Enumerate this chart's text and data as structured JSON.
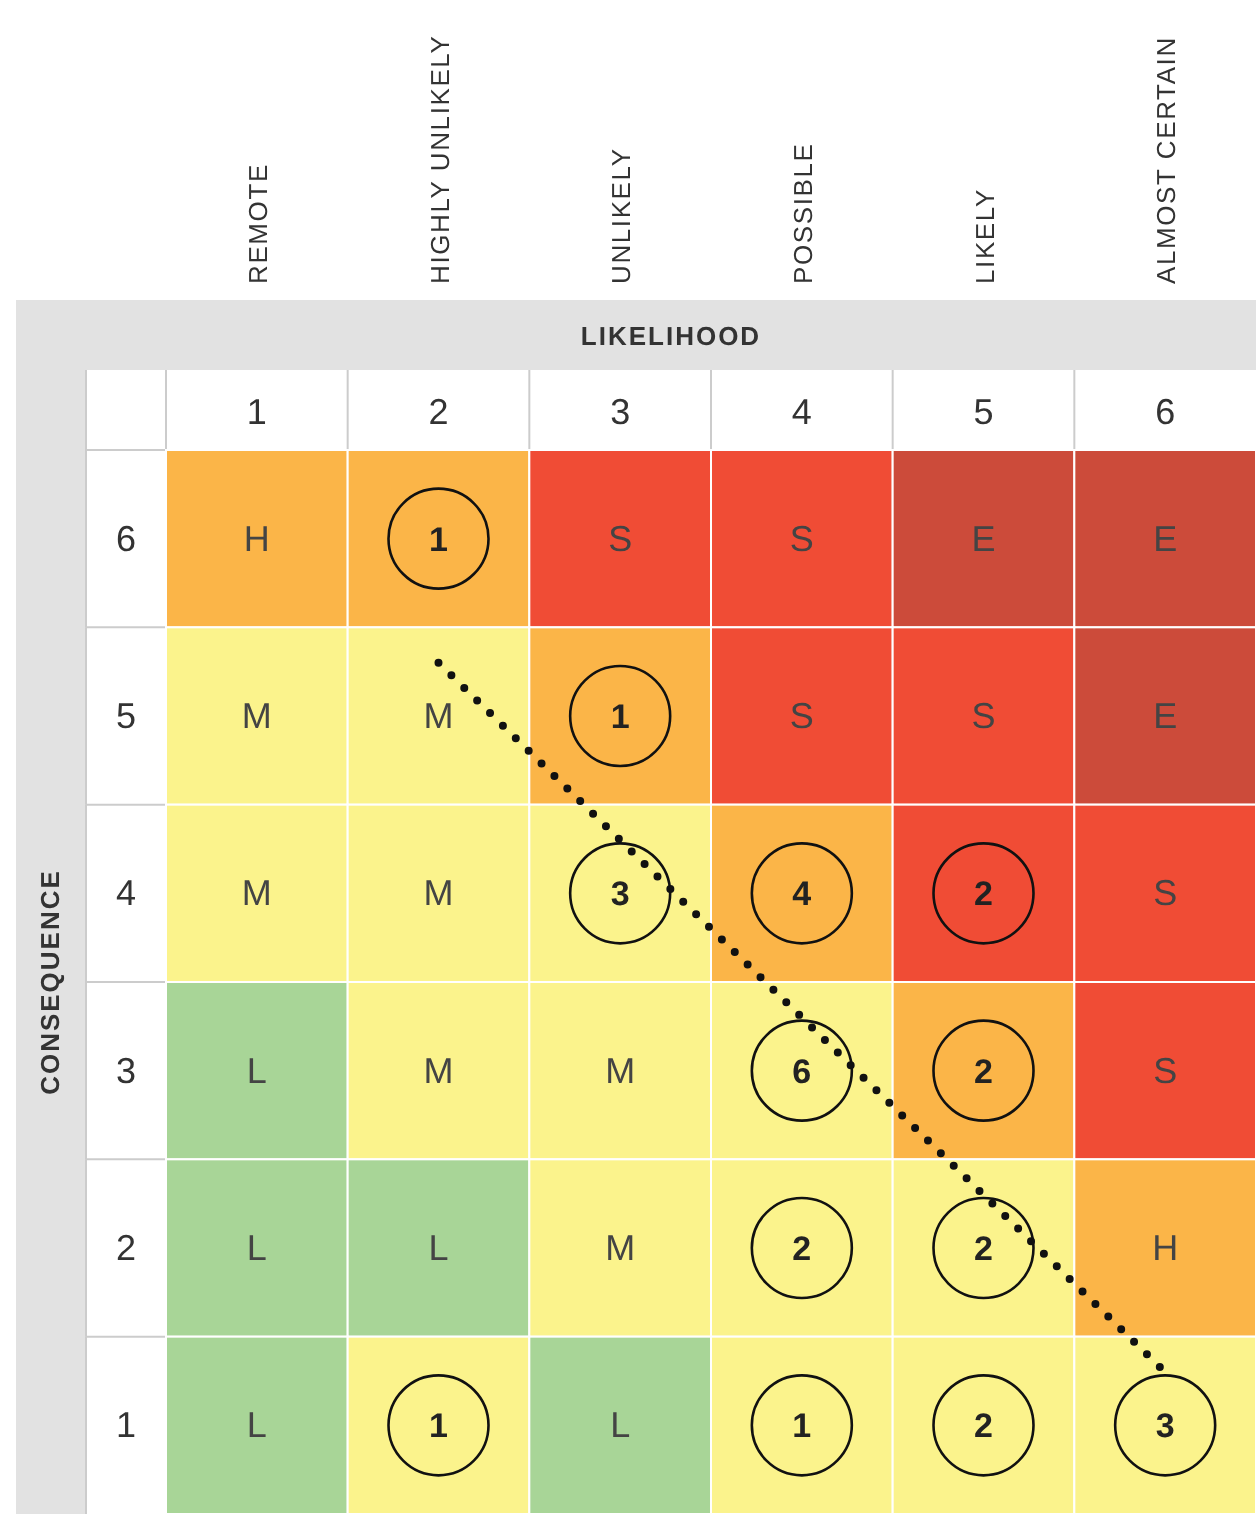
{
  "chart_data": {
    "type": "heatmap",
    "title": "LIKELIHOOD",
    "ylabel": "CONSEQUENCE",
    "categories": [
      "1",
      "2",
      "3",
      "4",
      "5",
      "6"
    ],
    "y_categories": [
      "6",
      "5",
      "4",
      "3",
      "2",
      "1"
    ],
    "annotations": [
      "REMOTE",
      "HIGHLY UNLIKELY",
      "UNLIKELY",
      "POSSIBLE",
      "LIKELY",
      "ALMOST CERTAIN"
    ],
    "cells": [
      [
        null,
        1,
        null,
        null,
        null,
        null
      ],
      [
        null,
        null,
        1,
        null,
        null,
        null
      ],
      [
        null,
        null,
        3,
        4,
        2,
        null
      ],
      [
        null,
        null,
        null,
        6,
        2,
        null
      ],
      [
        null,
        null,
        null,
        2,
        2,
        null
      ],
      [
        null,
        1,
        null,
        1,
        2,
        3
      ]
    ],
    "cell_labels": [
      [
        "H",
        "1",
        "S",
        "S",
        "E",
        "E"
      ],
      [
        "M",
        "M",
        "1",
        "S",
        "S",
        "E"
      ],
      [
        "M",
        "M",
        "3",
        "4",
        "2",
        "S"
      ],
      [
        "L",
        "M",
        "M",
        "6",
        "2",
        "S"
      ],
      [
        "L",
        "L",
        "M",
        "2",
        "2",
        "H"
      ],
      [
        "L",
        "1",
        "L",
        "1",
        "2",
        "3"
      ]
    ],
    "colors": [
      [
        "#fbb548",
        "#fbb548",
        "#f04c35",
        "#f04c35",
        "#cc4b3a",
        "#cc4b3a"
      ],
      [
        "#fbf38c",
        "#fbf38c",
        "#fbb548",
        "#f04c35",
        "#f04c35",
        "#cc4b3a"
      ],
      [
        "#fbf38c",
        "#fbf38c",
        "#fbf38c",
        "#fbb548",
        "#f04c35",
        "#f04c35"
      ],
      [
        "#a8d597",
        "#fbf38c",
        "#fbf38c",
        "#fbf38c",
        "#fbb548",
        "#f04c35"
      ],
      [
        "#a8d597",
        "#a8d597",
        "#fbf38c",
        "#fbf38c",
        "#fbf38c",
        "#fbb548"
      ],
      [
        "#a8d597",
        "#fbf38c",
        "#a8d597",
        "#fbf38c",
        "#fbf38c",
        "#fbf38c"
      ]
    ],
    "series": [
      {
        "type": "line",
        "line_style": "dotted",
        "color": "#111111",
        "x": [
          "2",
          "6"
        ],
        "values": [
          0.7,
          4.7
        ]
      }
    ]
  }
}
